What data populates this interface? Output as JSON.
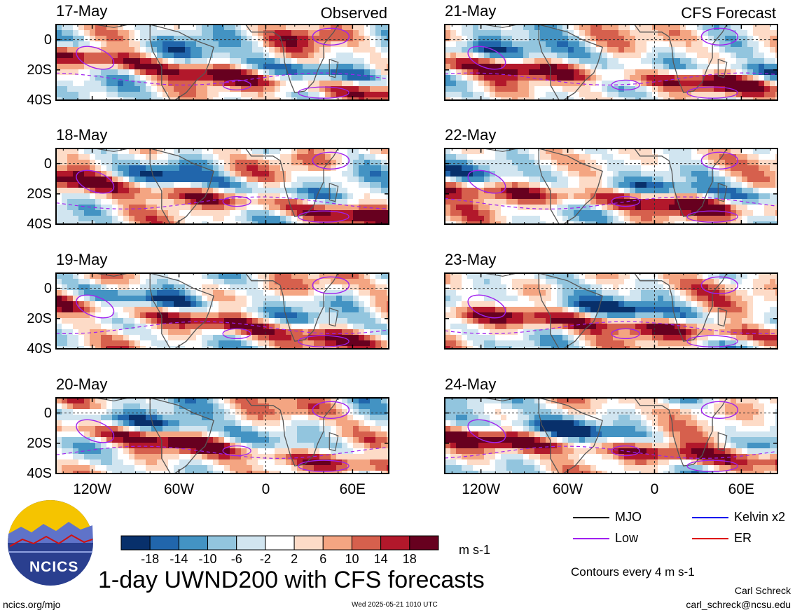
{
  "chart_data": {
    "type": "heatmap",
    "title": "1-day UWND200 with CFS forecasts",
    "variable": "UWND200",
    "units": "m s-1",
    "left_column_label": "Observed",
    "right_column_label": "CFS Forecast",
    "panels": [
      {
        "date": "17-May",
        "column": "Observed"
      },
      {
        "date": "18-May",
        "column": "Observed"
      },
      {
        "date": "19-May",
        "column": "Observed"
      },
      {
        "date": "20-May",
        "column": "Observed"
      },
      {
        "date": "21-May",
        "column": "CFS Forecast"
      },
      {
        "date": "22-May",
        "column": "CFS Forecast"
      },
      {
        "date": "23-May",
        "column": "CFS Forecast"
      },
      {
        "date": "24-May",
        "column": "CFS Forecast"
      }
    ],
    "x_range": [
      -145,
      85
    ],
    "y_range": [
      -40,
      10
    ],
    "x_ticks": [
      {
        "value": -120,
        "label": "120W"
      },
      {
        "value": -60,
        "label": "60W"
      },
      {
        "value": 0,
        "label": "0"
      },
      {
        "value": 60,
        "label": "60E"
      }
    ],
    "y_ticks": [
      {
        "value": 0,
        "label": "0"
      },
      {
        "value": -20,
        "label": "20S"
      },
      {
        "value": -40,
        "label": "40S"
      }
    ],
    "colorbar": {
      "labels": [
        "-18",
        "-14",
        "-10",
        "-6",
        "-2",
        "2",
        "6",
        "10",
        "14",
        "18"
      ],
      "colors": [
        "#08306b",
        "#2166ac",
        "#4393c3",
        "#92c5de",
        "#d1e5f0",
        "#ffffff",
        "#fddbc7",
        "#f4a582",
        "#d6604d",
        "#b2182b",
        "#67001f"
      ]
    },
    "legend": [
      {
        "label": "MJO",
        "color": "#000000"
      },
      {
        "label": "Kelvin x2",
        "color": "#0000ee"
      },
      {
        "label": "Low",
        "color": "#a020f0"
      },
      {
        "label": "ER",
        "color": "#dd0000"
      }
    ],
    "contour_note": "Contours every 4 m s-1"
  },
  "footer": {
    "logo_text": "NCICS",
    "url": "ncics.org/mjo",
    "timestamp": "Wed 2025-05-21 1010 UTC",
    "author": "Carl Schreck",
    "email": "carl_schreck@ncsu.edu"
  }
}
